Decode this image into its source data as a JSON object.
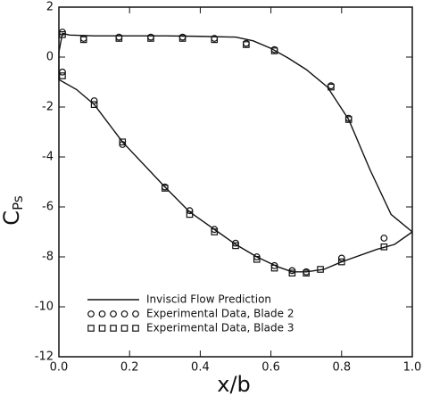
{
  "chart_data": {
    "type": "scatter",
    "xlabel": "x/b",
    "ylabel": "C",
    "ylabel_sub": "Ps",
    "xlim": [
      0,
      1.0
    ],
    "ylim": [
      -12,
      2
    ],
    "xticks": [
      {
        "value": 0,
        "label": "0.0"
      },
      0.2,
      0.4,
      0.6,
      0.8,
      {
        "value": 1.0,
        "label": "1.0"
      }
    ],
    "yticks": [
      -12,
      -10,
      -8,
      -6,
      -4,
      -2,
      0,
      2
    ],
    "legend": "lower left",
    "series": [
      {
        "name": "Inviscid Flow Prediction",
        "marker": "line",
        "color": "#111",
        "x": [
          1.0,
          0.95,
          0.9,
          0.8,
          0.75,
          0.7,
          0.66,
          0.62,
          0.56,
          0.5,
          0.45,
          0.37,
          0.3,
          0.18,
          0.1,
          0.05,
          0.0,
          0.0,
          0.01,
          0.03,
          0.1,
          0.2,
          0.3,
          0.4,
          0.5,
          0.55,
          0.6,
          0.65,
          0.7,
          0.76,
          0.82,
          0.88,
          0.94,
          1.0
        ],
        "y": [
          -7.0,
          -7.5,
          -7.7,
          -8.2,
          -8.5,
          -8.6,
          -8.6,
          -8.4,
          -8.0,
          -7.5,
          -7.0,
          -6.2,
          -5.2,
          -3.4,
          -1.9,
          -1.3,
          -0.9,
          0.2,
          0.95,
          0.88,
          0.85,
          0.85,
          0.85,
          0.83,
          0.8,
          0.65,
          0.35,
          -0.05,
          -0.5,
          -1.2,
          -2.5,
          -4.5,
          -6.3,
          -7.0
        ]
      },
      {
        "name": "Experimental Data, Blade 2",
        "marker": "circle",
        "color": "#111",
        "x": [
          0.01,
          0.07,
          0.17,
          0.26,
          0.35,
          0.44,
          0.53,
          0.61,
          0.77,
          0.82,
          0.92,
          0.01,
          0.1,
          0.18,
          0.3,
          0.37,
          0.44,
          0.5,
          0.56,
          0.61,
          0.66,
          0.7,
          0.8
        ],
        "y": [
          1.0,
          0.75,
          0.8,
          0.8,
          0.8,
          0.75,
          0.55,
          0.3,
          -1.15,
          -2.45,
          -7.25,
          -0.6,
          -1.75,
          -3.5,
          -5.2,
          -6.15,
          -6.9,
          -7.45,
          -8.0,
          -8.35,
          -8.55,
          -8.6,
          -8.05
        ]
      },
      {
        "name": "Experimental Data, Blade 3",
        "marker": "square",
        "color": "#111",
        "x": [
          0.01,
          0.07,
          0.17,
          0.26,
          0.35,
          0.44,
          0.53,
          0.61,
          0.77,
          0.82,
          0.92,
          0.01,
          0.1,
          0.18,
          0.3,
          0.37,
          0.44,
          0.5,
          0.56,
          0.61,
          0.66,
          0.7,
          0.74,
          0.8
        ],
        "y": [
          0.9,
          0.7,
          0.75,
          0.75,
          0.75,
          0.7,
          0.5,
          0.25,
          -1.2,
          -2.5,
          -7.6,
          -0.75,
          -1.9,
          -3.4,
          -5.25,
          -6.3,
          -7.0,
          -7.55,
          -8.1,
          -8.45,
          -8.65,
          -8.65,
          -8.5,
          -8.2
        ]
      }
    ]
  }
}
